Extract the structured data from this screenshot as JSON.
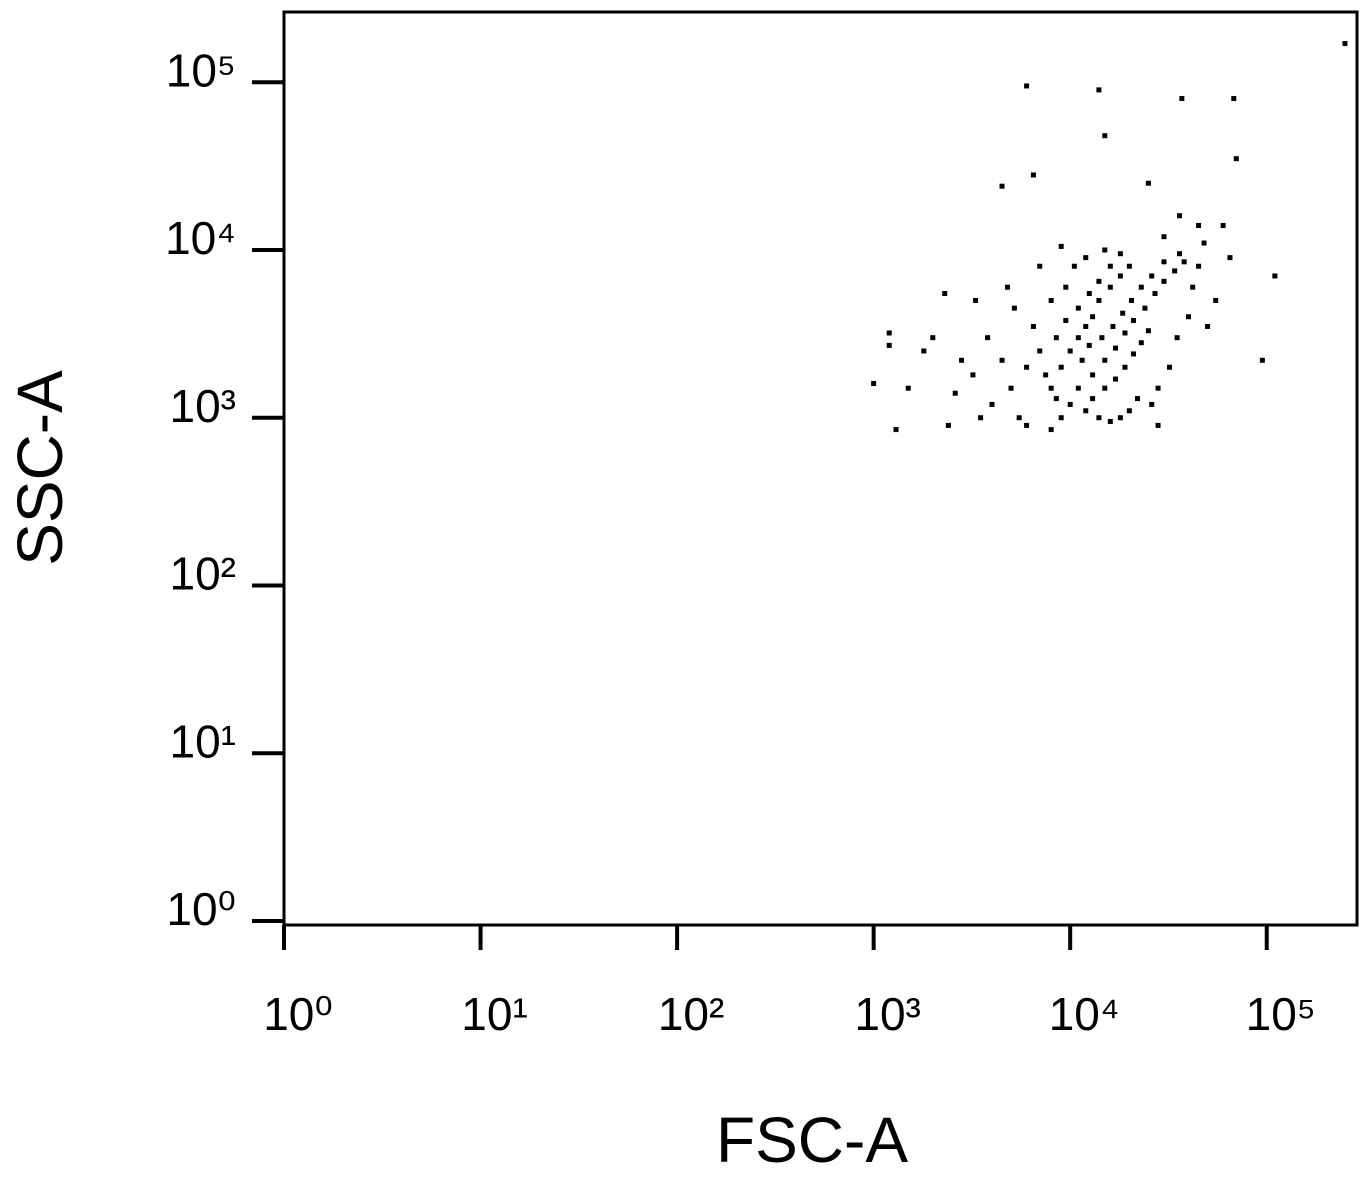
{
  "chart_data": {
    "type": "scatter",
    "x_label": "FSC-A",
    "y_label": "SSC-A",
    "log_x": true,
    "log_y": true,
    "color": "#000000",
    "xlim": [
      1,
      262144
    ],
    "ylim": [
      1,
      262144
    ],
    "xticks": [
      {
        "value": 1,
        "label": "10⁰"
      },
      {
        "value": 10,
        "label": "10¹"
      },
      {
        "value": 100,
        "label": "10²"
      },
      {
        "value": 1000,
        "label": "10³"
      },
      {
        "value": 10000,
        "label": "10⁴"
      },
      {
        "value": 100000,
        "label": "10⁵"
      }
    ],
    "yticks": [
      {
        "value": 1,
        "label": "10⁰"
      },
      {
        "value": 10,
        "label": "10¹"
      },
      {
        "value": 100,
        "label": "10²"
      },
      {
        "value": 1000,
        "label": "10³"
      },
      {
        "value": 10000,
        "label": "10⁴"
      },
      {
        "value": 100000,
        "label": "10⁵"
      }
    ],
    "x": [
      8000,
      9000,
      10000,
      11000,
      12000,
      13000,
      14000,
      16000,
      18000,
      20000,
      10000,
      12000,
      14000,
      16000,
      18000,
      20000,
      22000,
      9000,
      11000,
      13000,
      15000,
      17000,
      19000,
      21000,
      24000,
      27000,
      30000,
      34000,
      38000,
      8500,
      9500,
      11000,
      12500,
      14000,
      16000,
      18000,
      13000,
      15000,
      17000,
      19000,
      21000,
      23000,
      25000,
      11500,
      12500,
      14500,
      16500,
      18500,
      20500,
      23000,
      26000,
      30000,
      7000,
      7500,
      8500,
      6500,
      6000,
      26000,
      28000,
      32000,
      35000,
      40000,
      42000,
      45000,
      36000,
      10500,
      12000,
      15000,
      9500,
      8000,
      5000,
      4500,
      4000,
      3800,
      3500,
      3200,
      2800,
      2600,
      5500,
      6000,
      50000,
      55000,
      48000,
      60000,
      65000,
      45000,
      5200,
      4800,
      7000,
      9000,
      30000,
      36000,
      28000,
      8000,
      2300,
      3300,
      2000,
      1500,
      1800,
      2400,
      6000,
      14000,
      37000,
      68000,
      15000,
      70000,
      6500,
      4500,
      25000,
      1200,
      1200,
      1000,
      1300,
      95000,
      110000,
      250000
    ],
    "values": [
      1500,
      2000,
      2500,
      3000,
      3500,
      4000,
      5000,
      6000,
      7000,
      8000,
      1200,
      1100,
      1000,
      950,
      1000,
      1100,
      1300,
      1000,
      1500,
      1800,
      2200,
      2600,
      3200,
      3800,
      4500,
      5500,
      6500,
      7500,
      8500,
      3000,
      3800,
      4500,
      5500,
      6500,
      8000,
      9500,
      1300,
      1500,
      1700,
      2000,
      2400,
      2800,
      3300,
      2200,
      2700,
      3000,
      3500,
      4200,
      5000,
      6000,
      7000,
      8500,
      2500,
      1800,
      1300,
      3500,
      2000,
      1200,
      1500,
      2000,
      3000,
      4000,
      6000,
      8000,
      9500,
      8000,
      9000,
      10000,
      6000,
      5000,
      1500,
      2200,
      1200,
      3000,
      1000,
      1800,
      2200,
      1400,
      1000,
      900,
      3500,
      5000,
      11000,
      14000,
      9000,
      14000,
      4500,
      6000,
      8000,
      10500,
      12000,
      16000,
      900,
      850,
      5500,
      5000,
      3000,
      1500,
      2500,
      900,
      95000,
      90000,
      80000,
      80000,
      48000,
      35000,
      28000,
      24000,
      25000,
      3200,
      2700,
      1600,
      850,
      2200,
      7000,
      170000
    ]
  }
}
